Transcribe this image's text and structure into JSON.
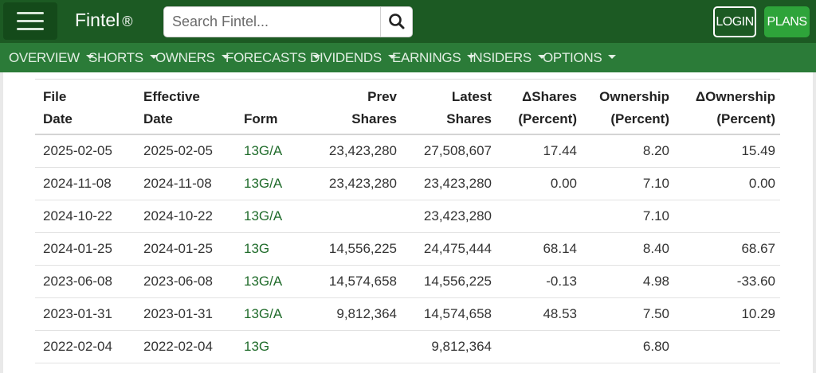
{
  "header": {
    "brand": "Fintel",
    "brand_mark": "®",
    "search_placeholder": "Search Fintel...",
    "login_label": "LOGIN",
    "plans_label": "PLANS"
  },
  "nav": [
    {
      "label": "OVERVIEW"
    },
    {
      "label": "SHORTS"
    },
    {
      "label": "OWNERS"
    },
    {
      "label": "FORECASTS"
    },
    {
      "label": "DIVIDENDS"
    },
    {
      "label": "EARNINGS"
    },
    {
      "label": "INSIDERS"
    },
    {
      "label": "OPTIONS"
    }
  ],
  "table": {
    "headers": {
      "file_date_1": "File",
      "file_date_2": "Date",
      "effective_date_1": "Effective",
      "effective_date_2": "Date",
      "form": "Form",
      "prev_shares_1": "Prev",
      "prev_shares_2": "Shares",
      "latest_shares_1": "Latest",
      "latest_shares_2": "Shares",
      "delta_shares_1": "ΔShares",
      "delta_shares_2": "(Percent)",
      "ownership_1": "Ownership",
      "ownership_2": "(Percent)",
      "delta_ownership_1": "ΔOwnership",
      "delta_ownership_2": "(Percent)"
    },
    "rows": [
      {
        "file_date": "2025-02-05",
        "effective_date": "2025-02-05",
        "form": "13G/A",
        "prev_shares": "23,423,280",
        "latest_shares": "27,508,607",
        "delta_shares": "17.44",
        "ownership": "8.20",
        "delta_ownership": "15.49"
      },
      {
        "file_date": "2024-11-08",
        "effective_date": "2024-11-08",
        "form": "13G/A",
        "prev_shares": "23,423,280",
        "latest_shares": "23,423,280",
        "delta_shares": "0.00",
        "ownership": "7.10",
        "delta_ownership": "0.00"
      },
      {
        "file_date": "2024-10-22",
        "effective_date": "2024-10-22",
        "form": "13G/A",
        "prev_shares": "",
        "latest_shares": "23,423,280",
        "delta_shares": "",
        "ownership": "7.10",
        "delta_ownership": ""
      },
      {
        "file_date": "2024-01-25",
        "effective_date": "2024-01-25",
        "form": "13G",
        "prev_shares": "14,556,225",
        "latest_shares": "24,475,444",
        "delta_shares": "68.14",
        "ownership": "8.40",
        "delta_ownership": "68.67"
      },
      {
        "file_date": "2023-06-08",
        "effective_date": "2023-06-08",
        "form": "13G/A",
        "prev_shares": "14,574,658",
        "latest_shares": "14,556,225",
        "delta_shares": "-0.13",
        "ownership": "4.98",
        "delta_ownership": "-33.60"
      },
      {
        "file_date": "2023-01-31",
        "effective_date": "2023-01-31",
        "form": "13G/A",
        "prev_shares": "9,812,364",
        "latest_shares": "14,574,658",
        "delta_shares": "48.53",
        "ownership": "7.50",
        "delta_ownership": "10.29"
      },
      {
        "file_date": "2022-02-04",
        "effective_date": "2022-02-04",
        "form": "13G",
        "prev_shares": "",
        "latest_shares": "9,812,364",
        "delta_shares": "",
        "ownership": "6.80",
        "delta_ownership": ""
      }
    ]
  },
  "colors": {
    "header_bg": "#1c5a23",
    "nav_bg": "#2b7b38",
    "plans_bg": "#2ea43a",
    "link": "#1f6b2a"
  },
  "icons": {
    "menu": "hamburger-menu-icon",
    "search": "search-icon",
    "caret": "chevron-down-icon"
  }
}
